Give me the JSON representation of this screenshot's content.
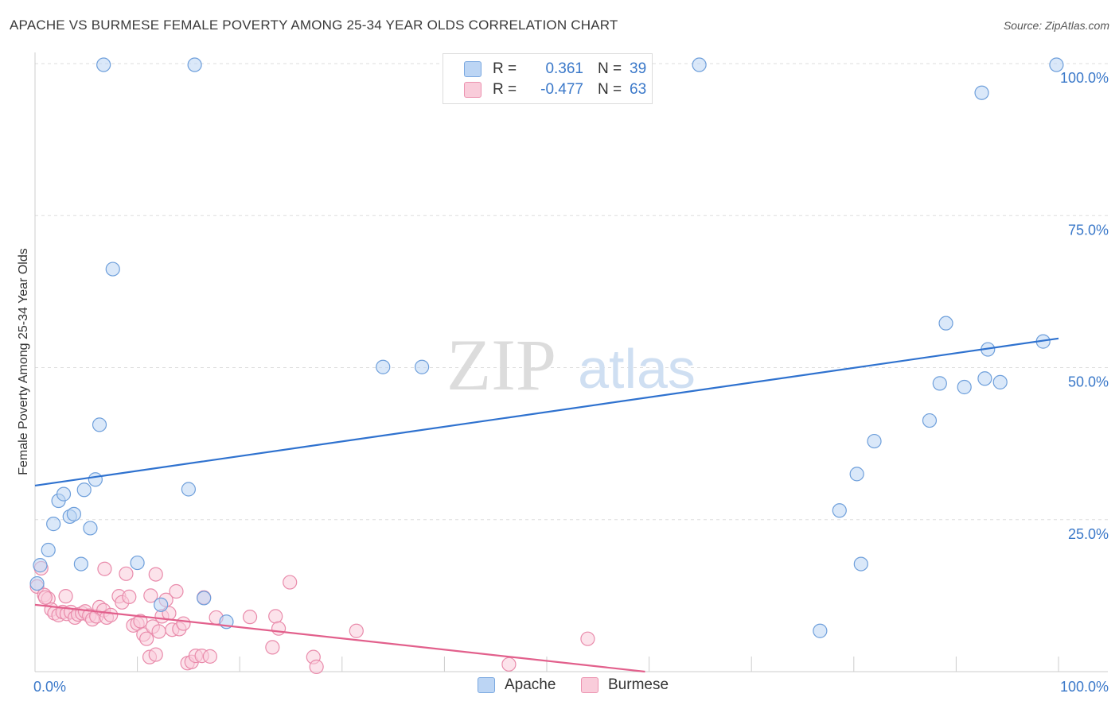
{
  "header": {
    "title": "APACHE VS BURMESE FEMALE POVERTY AMONG 25-34 YEAR OLDS CORRELATION CHART",
    "source": "Source: ZipAtlas.com"
  },
  "watermark": {
    "zip": "ZIP",
    "atlas": "atlas"
  },
  "legend": {
    "rows": [
      {
        "r_label": "R =",
        "r_value": "0.361",
        "n_label": "N =",
        "n_value": "39",
        "color": "#9dc3f0"
      },
      {
        "r_label": "R =",
        "r_value": "-0.477",
        "n_label": "N =",
        "n_value": "63",
        "color": "#f4a8c0"
      }
    ]
  },
  "bottom_legend": {
    "apache": "Apache",
    "burmese": "Burmese"
  },
  "chart_data": {
    "type": "scatter",
    "title": "APACHE VS BURMESE FEMALE POVERTY AMONG 25-34 YEAR OLDS CORRELATION CHART",
    "ylabel": "Female Poverty Among 25-34 Year Olds",
    "xlabel": "",
    "xlim": [
      0,
      100
    ],
    "ylim": [
      0,
      100
    ],
    "x_tick_labels": [
      "0.0%",
      "100.0%"
    ],
    "y_ticks": [
      25,
      50,
      75,
      100
    ],
    "y_tick_labels": [
      "25.0%",
      "50.0%",
      "75.0%",
      "100.0%"
    ],
    "grid": true,
    "legend_position": "top-center",
    "colors": {
      "apache": "#5b93d9",
      "apache_fill": "#b8d3f3",
      "burmese": "#e8759a",
      "burmese_fill": "#f7c3d3"
    },
    "series": [
      {
        "name": "Apache",
        "trend": {
          "x": [
            0,
            100
          ],
          "y": [
            30.6,
            54.8
          ]
        },
        "points": [
          [
            0.2,
            14.5
          ],
          [
            0.5,
            17.5
          ],
          [
            1.3,
            20.0
          ],
          [
            1.8,
            24.3
          ],
          [
            2.3,
            28.1
          ],
          [
            2.8,
            29.2
          ],
          [
            3.4,
            25.5
          ],
          [
            3.8,
            25.9
          ],
          [
            4.5,
            17.7
          ],
          [
            4.8,
            29.9
          ],
          [
            5.4,
            23.6
          ],
          [
            5.9,
            31.6
          ],
          [
            6.3,
            40.6
          ],
          [
            7.6,
            66.2
          ],
          [
            10.0,
            17.9
          ],
          [
            12.3,
            11.0
          ],
          [
            15.0,
            30.0
          ],
          [
            16.5,
            12.1
          ],
          [
            18.7,
            8.2
          ],
          [
            6.7,
            99.8
          ],
          [
            15.6,
            99.8
          ],
          [
            64.9,
            99.8
          ],
          [
            99.8,
            99.8
          ],
          [
            92.5,
            95.2
          ],
          [
            34.0,
            50.1
          ],
          [
            37.8,
            50.1
          ],
          [
            89.0,
            57.3
          ],
          [
            93.1,
            53.0
          ],
          [
            98.5,
            54.3
          ],
          [
            88.4,
            47.4
          ],
          [
            90.8,
            46.8
          ],
          [
            92.8,
            48.2
          ],
          [
            94.3,
            47.6
          ],
          [
            87.4,
            41.3
          ],
          [
            82.0,
            37.9
          ],
          [
            80.3,
            32.5
          ],
          [
            78.6,
            26.5
          ],
          [
            80.7,
            17.7
          ],
          [
            76.7,
            6.7
          ]
        ]
      },
      {
        "name": "Burmese",
        "trend": {
          "x": [
            0,
            59.6
          ],
          "y": [
            11.0,
            0.0
          ]
        },
        "points": [
          [
            0.2,
            14.0
          ],
          [
            0.6,
            17.0
          ],
          [
            0.9,
            12.6
          ],
          [
            1.3,
            12.0
          ],
          [
            1.6,
            10.2
          ],
          [
            1.9,
            9.6
          ],
          [
            2.3,
            9.3
          ],
          [
            2.7,
            9.8
          ],
          [
            3.1,
            9.5
          ],
          [
            3.5,
            9.8
          ],
          [
            3.9,
            8.9
          ],
          [
            4.2,
            9.4
          ],
          [
            4.6,
            9.6
          ],
          [
            4.9,
            9.9
          ],
          [
            5.3,
            9.2
          ],
          [
            5.6,
            8.6
          ],
          [
            6.0,
            9.1
          ],
          [
            6.3,
            10.6
          ],
          [
            6.7,
            10.1
          ],
          [
            7.0,
            8.9
          ],
          [
            7.4,
            9.3
          ],
          [
            3.0,
            12.4
          ],
          [
            6.8,
            16.9
          ],
          [
            8.2,
            12.4
          ],
          [
            8.5,
            11.4
          ],
          [
            8.9,
            16.1
          ],
          [
            9.2,
            12.3
          ],
          [
            9.6,
            7.6
          ],
          [
            10.0,
            7.9
          ],
          [
            10.3,
            8.3
          ],
          [
            10.6,
            6.1
          ],
          [
            10.9,
            5.4
          ],
          [
            11.2,
            2.4
          ],
          [
            11.5,
            7.4
          ],
          [
            11.8,
            2.8
          ],
          [
            11.3,
            12.5
          ],
          [
            11.8,
            16.0
          ],
          [
            12.1,
            6.6
          ],
          [
            12.4,
            9.1
          ],
          [
            12.8,
            11.8
          ],
          [
            13.1,
            9.6
          ],
          [
            13.4,
            6.9
          ],
          [
            13.8,
            13.2
          ],
          [
            14.1,
            7.0
          ],
          [
            14.5,
            7.9
          ],
          [
            14.9,
            1.4
          ],
          [
            15.3,
            1.6
          ],
          [
            15.7,
            2.6
          ],
          [
            16.3,
            2.6
          ],
          [
            16.5,
            12.2
          ],
          [
            17.1,
            2.5
          ],
          [
            17.7,
            8.9
          ],
          [
            21.0,
            9.0
          ],
          [
            23.2,
            4.0
          ],
          [
            23.5,
            9.1
          ],
          [
            23.8,
            7.1
          ],
          [
            24.9,
            14.7
          ],
          [
            27.2,
            2.4
          ],
          [
            27.5,
            0.8
          ],
          [
            31.4,
            6.7
          ],
          [
            46.3,
            1.2
          ],
          [
            54.0,
            5.4
          ],
          [
            1.0,
            12.2
          ]
        ]
      }
    ]
  }
}
